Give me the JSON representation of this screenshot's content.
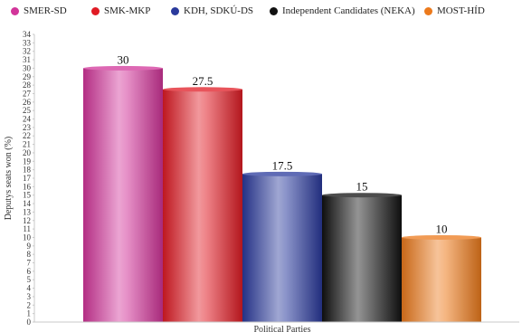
{
  "chart_data": {
    "type": "bar",
    "categories": [
      "SMER-SD",
      "SMK-MKP",
      "KDH, SDKÚ-DS",
      "Independent Candidates (NEKA)",
      "MOST-HÍD"
    ],
    "values": [
      30,
      27.5,
      17.5,
      15,
      10
    ],
    "value_labels": [
      "30",
      "27.5",
      "17.5",
      "15",
      "10"
    ],
    "colors": [
      "#d2359a",
      "#e01b24",
      "#2a3a9c",
      "#111111",
      "#ec7a1c"
    ],
    "xlabel": "Political Parties",
    "ylabel": "Deputys seats won (%)",
    "ylim": [
      0,
      34
    ],
    "ytick_step": 1,
    "grid": false,
    "legend_position": "top"
  }
}
